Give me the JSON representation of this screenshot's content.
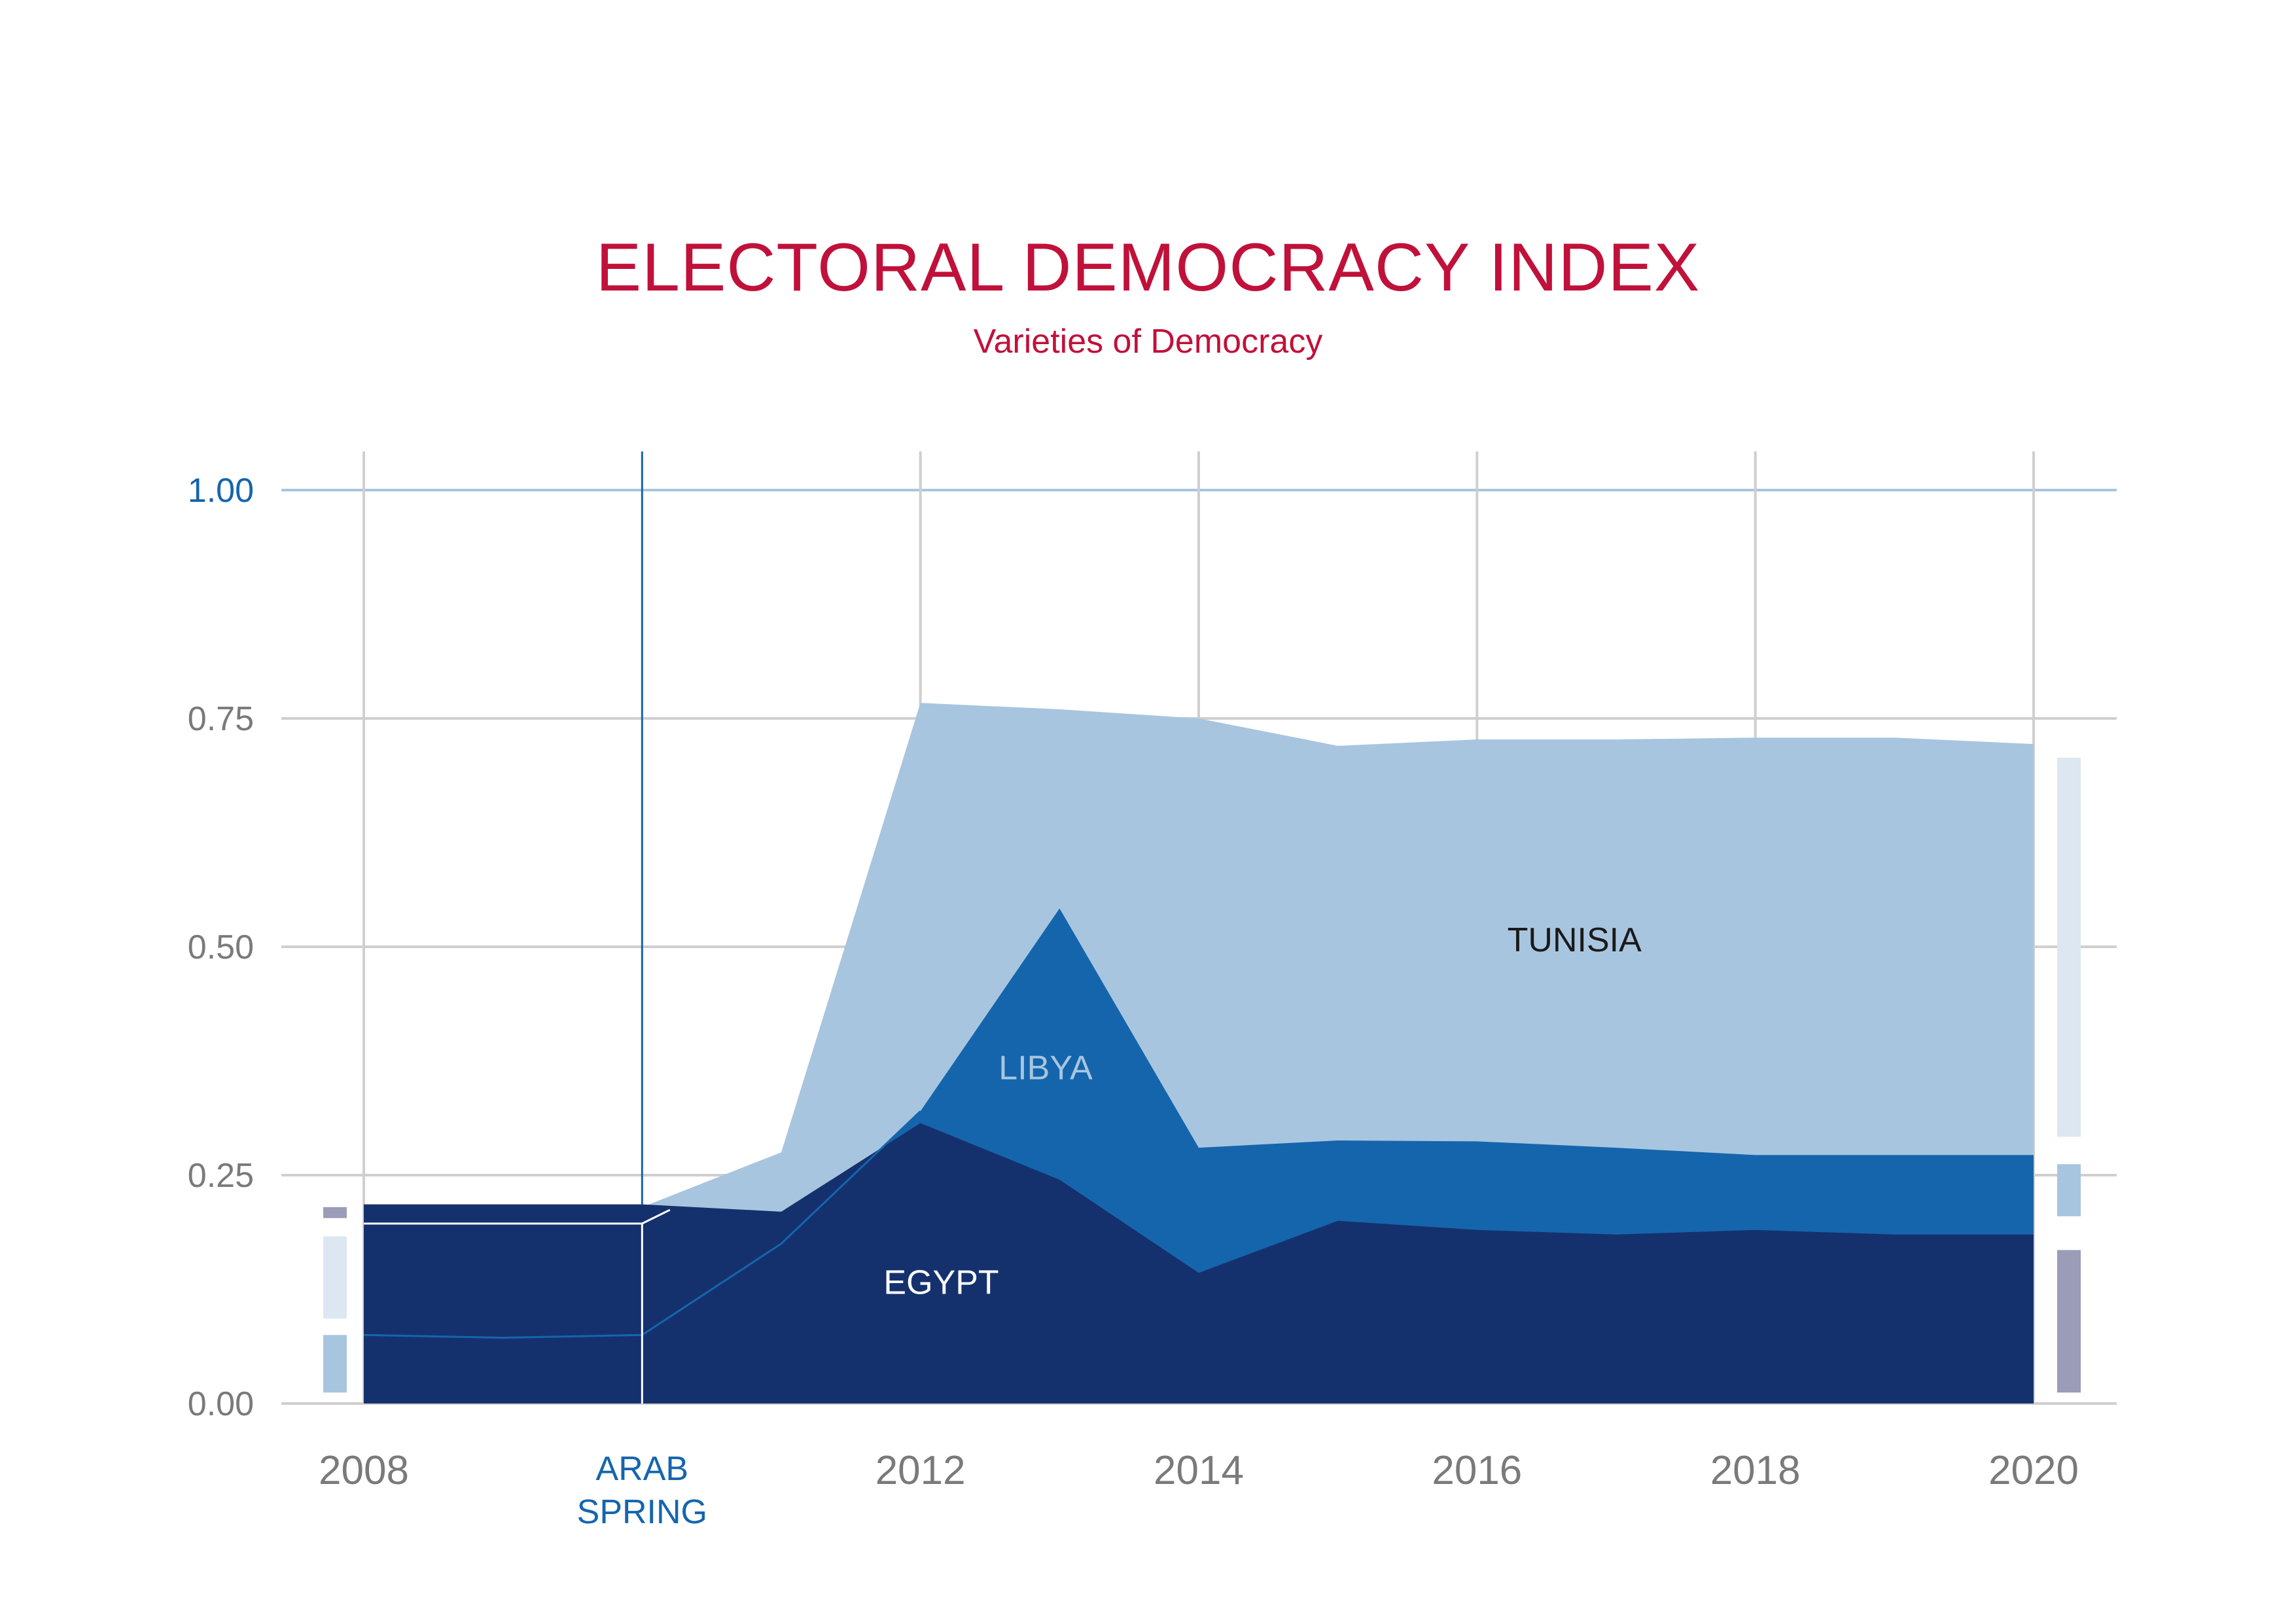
{
  "chart_data": {
    "type": "area",
    "title": "ELECTORAL DEMOCRACY INDEX",
    "subtitle": "Varieties of Democracy",
    "x": [
      2008,
      2009,
      2010,
      2011,
      2012,
      2013,
      2014,
      2015,
      2016,
      2017,
      2018,
      2019,
      2020
    ],
    "xlim": [
      2008,
      2020
    ],
    "ylim": [
      0,
      1
    ],
    "y_ticks": [
      "0.00",
      "0.25",
      "0.50",
      "0.75",
      "1.00"
    ],
    "y_tick_values": [
      0,
      0.25,
      0.5,
      0.75,
      1.0
    ],
    "x_ticks": [
      {
        "value": 2008,
        "label": "2008"
      },
      {
        "value": 2012,
        "label": "2012"
      },
      {
        "value": 2014,
        "label": "2014"
      },
      {
        "value": 2016,
        "label": "2016"
      },
      {
        "value": 2018,
        "label": "2018"
      },
      {
        "value": 2020,
        "label": "2020"
      }
    ],
    "event": {
      "x": 2010,
      "label_lines": [
        "ARAB",
        "SPRING"
      ]
    },
    "grid": true,
    "series": [
      {
        "name": "TUNISIA",
        "color": "#a8c5df",
        "label_color": "#1a1a1a",
        "label_pos": {
          "x": 2016.7,
          "y": 0.495
        },
        "values": [
          0.215,
          0.215,
          0.215,
          0.275,
          0.767,
          0.76,
          0.75,
          0.72,
          0.727,
          0.727,
          0.729,
          0.729,
          0.722
        ]
      },
      {
        "name": "LIBYA",
        "color": "#1565ad",
        "label_color": "#a8c5df",
        "label_pos": {
          "x": 2012.9,
          "y": 0.355
        },
        "values": [
          0.075,
          0.072,
          0.075,
          0.175,
          0.32,
          0.542,
          0.28,
          0.288,
          0.287,
          0.28,
          0.272,
          0.272,
          0.272
        ]
      },
      {
        "name": "EGYPT",
        "color": "#15316d",
        "label_color": "#ffffff",
        "label_pos": {
          "x": 2012.15,
          "y": 0.12
        },
        "values": [
          0.218,
          0.218,
          0.218,
          0.21,
          0.307,
          0.245,
          0.143,
          0.2,
          0.19,
          0.185,
          0.19,
          0.185,
          0.185
        ]
      }
    ],
    "reference_line": {
      "from": 2008,
      "to": 2010.2,
      "y": 0.197,
      "end_y": 0.212,
      "color": "#ffffff"
    },
    "end_markers": [
      {
        "segments": [
          [
            0.012,
            0.075
          ],
          [
            0.093,
            0.183
          ],
          [
            0.203,
            0.215
          ]
        ],
        "colors": [
          "#a8c5df",
          "#dde7f2",
          "#9a9cb8"
        ]
      },
      {
        "segments": [
          [
            0.012,
            0.168
          ],
          [
            0.205,
            0.262
          ],
          [
            0.292,
            0.707
          ]
        ],
        "colors": [
          "#9a9cb8",
          "#a8c5df",
          "#dde7f2"
        ]
      }
    ],
    "colors": {
      "grid": "#cfcfcf",
      "top_grid": "#a8c5df",
      "event_line": "#1565ad",
      "title": "#c0113a"
    }
  }
}
